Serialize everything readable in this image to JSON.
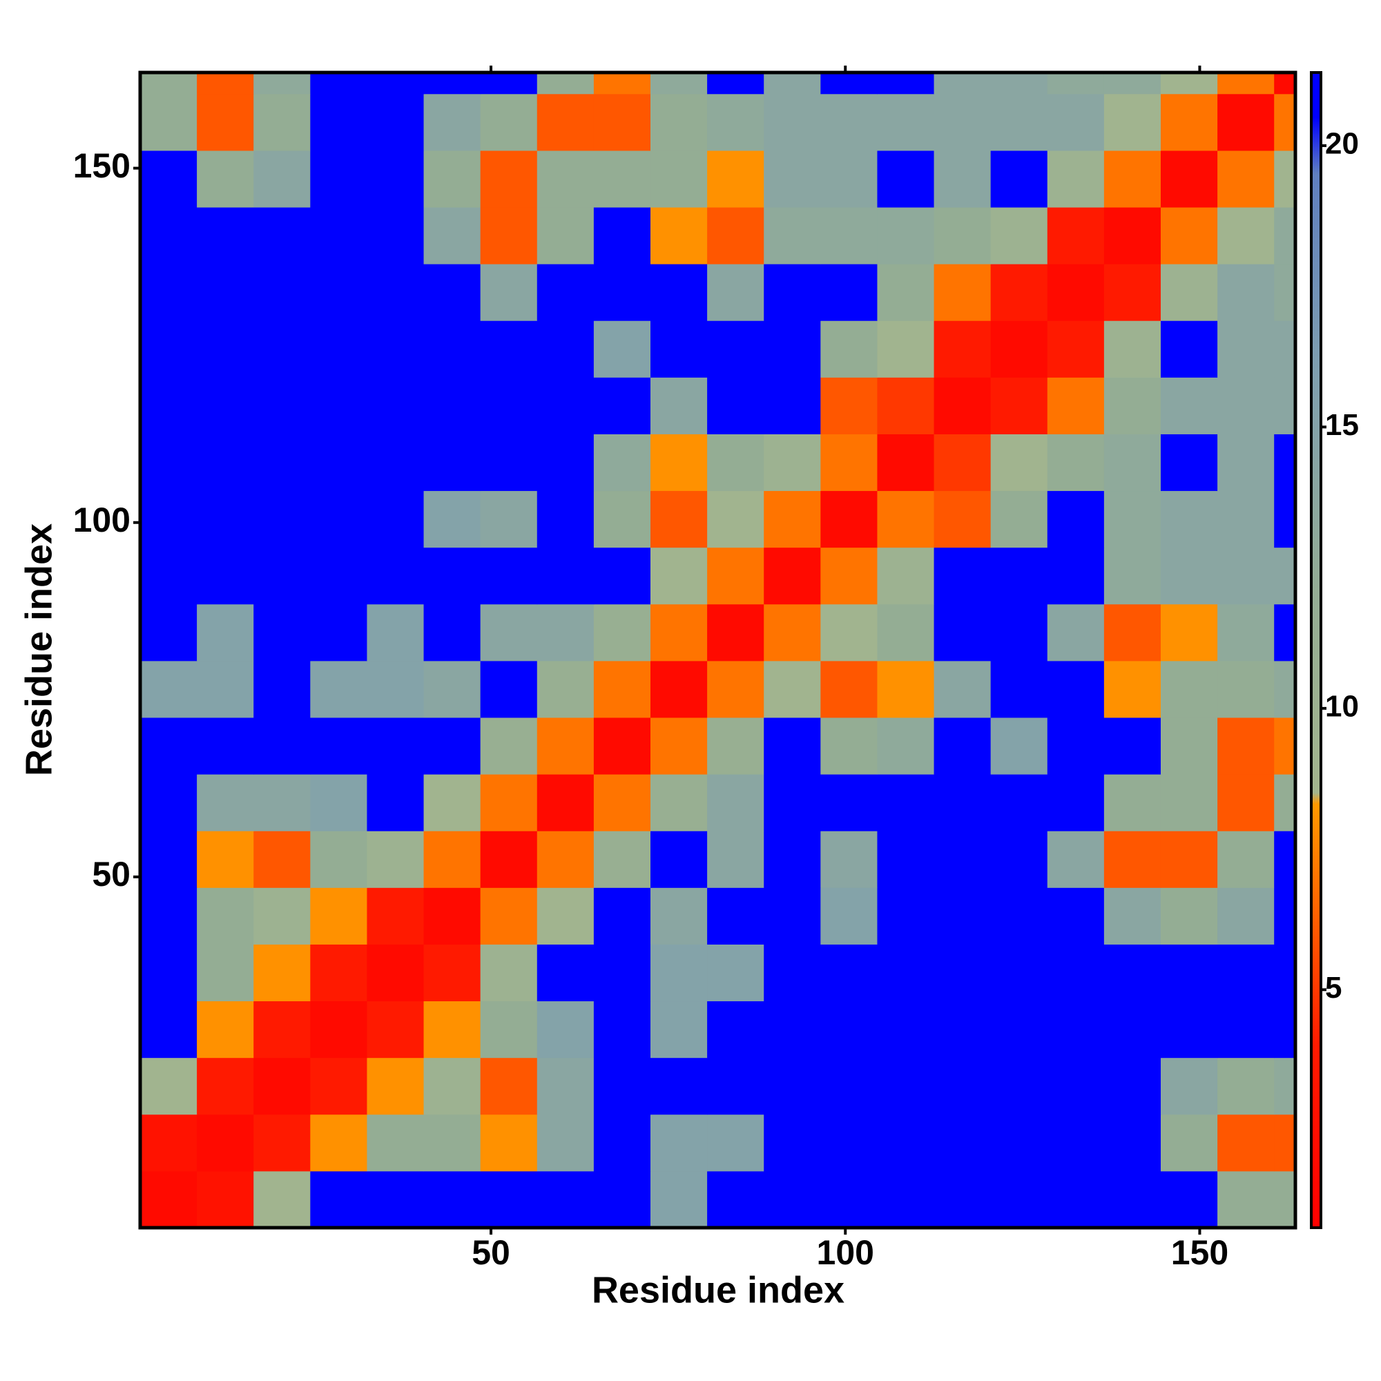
{
  "chart_data": {
    "type": "heatmap",
    "xlabel": "Residue index",
    "ylabel": "Residue index",
    "x": [
      4.5,
      12.5,
      20.5,
      28.5,
      36.5,
      44.5,
      52.5,
      60.5,
      68.5,
      76.5,
      84.5,
      92.5,
      100.5,
      108.5,
      116.5,
      124.5,
      132.5,
      140.5,
      148.5,
      156.5,
      164.5
    ],
    "y": [
      4.5,
      12.5,
      20.5,
      28.5,
      36.5,
      44.5,
      52.5,
      60.5,
      68.5,
      76.5,
      84.5,
      92.5,
      100.5,
      108.5,
      116.5,
      124.5,
      132.5,
      140.5,
      148.5,
      156.5,
      164.5
    ],
    "z": [
      [
        2,
        3,
        9,
        21,
        21,
        21,
        21,
        21,
        21,
        15,
        21,
        21,
        21,
        21,
        21,
        21,
        21,
        21,
        21,
        12,
        12
      ],
      [
        3,
        2,
        4,
        8,
        12,
        12,
        8,
        14,
        21,
        15,
        15,
        21,
        21,
        21,
        21,
        21,
        21,
        21,
        12,
        6,
        6
      ],
      [
        9,
        4,
        2,
        4,
        8,
        10,
        6,
        14,
        21,
        21,
        21,
        21,
        21,
        21,
        21,
        21,
        21,
        21,
        14,
        12,
        13
      ],
      [
        21,
        8,
        4,
        2,
        4,
        8,
        12,
        15,
        21,
        15,
        21,
        21,
        21,
        21,
        21,
        21,
        21,
        21,
        21,
        21,
        21
      ],
      [
        21,
        12,
        8,
        4,
        2,
        4,
        10,
        21,
        21,
        15,
        15,
        21,
        21,
        21,
        21,
        21,
        21,
        21,
        21,
        21,
        21
      ],
      [
        21,
        12,
        10,
        8,
        4,
        2,
        7,
        9,
        21,
        14,
        21,
        21,
        15,
        21,
        21,
        21,
        21,
        14,
        12,
        14,
        21
      ],
      [
        21,
        8,
        6,
        12,
        10,
        7,
        2,
        7,
        11,
        21,
        14,
        21,
        14,
        21,
        21,
        21,
        14,
        6,
        6,
        12,
        21
      ],
      [
        21,
        14,
        14,
        15,
        21,
        9,
        7,
        2,
        7,
        11,
        14,
        21,
        21,
        21,
        21,
        21,
        21,
        12,
        12,
        6,
        12
      ],
      [
        21,
        21,
        21,
        21,
        21,
        21,
        11,
        7,
        2,
        7,
        11,
        21,
        12,
        13,
        21,
        15,
        21,
        21,
        12,
        6,
        7
      ],
      [
        15,
        15,
        21,
        15,
        15,
        14,
        21,
        11,
        7,
        2,
        7,
        9,
        6,
        8,
        14,
        21,
        21,
        8,
        12,
        12,
        13
      ],
      [
        21,
        15,
        21,
        21,
        15,
        21,
        14,
        14,
        11,
        7,
        2,
        7,
        9,
        12,
        21,
        21,
        14,
        6,
        8,
        13,
        21
      ],
      [
        21,
        21,
        21,
        21,
        21,
        21,
        21,
        21,
        21,
        9,
        7,
        2,
        7,
        10,
        21,
        21,
        21,
        13,
        14,
        14,
        14
      ],
      [
        21,
        21,
        21,
        21,
        21,
        15,
        14,
        21,
        12,
        6,
        9,
        7,
        2,
        7,
        6,
        12,
        21,
        13,
        14,
        14,
        21
      ],
      [
        21,
        21,
        21,
        21,
        21,
        21,
        21,
        21,
        13,
        8,
        12,
        10,
        7,
        2,
        5,
        9,
        12,
        13,
        21,
        14,
        21
      ],
      [
        21,
        21,
        21,
        21,
        21,
        21,
        21,
        21,
        21,
        14,
        21,
        21,
        6,
        5,
        2,
        4,
        7,
        12,
        14,
        14,
        14
      ],
      [
        21,
        21,
        21,
        21,
        21,
        21,
        21,
        21,
        15,
        21,
        21,
        21,
        12,
        9,
        4,
        2,
        4,
        10,
        21,
        14,
        14
      ],
      [
        21,
        21,
        21,
        21,
        21,
        21,
        14,
        21,
        21,
        21,
        14,
        21,
        21,
        12,
        7,
        4,
        2,
        4,
        10,
        14,
        13
      ],
      [
        21,
        21,
        21,
        21,
        21,
        14,
        6,
        12,
        21,
        8,
        6,
        13,
        13,
        13,
        12,
        10,
        4,
        2,
        7,
        9,
        13
      ],
      [
        21,
        12,
        14,
        21,
        21,
        12,
        6,
        12,
        12,
        12,
        8,
        14,
        14,
        21,
        14,
        21,
        10,
        7,
        2,
        7,
        9
      ],
      [
        12,
        6,
        12,
        21,
        21,
        14,
        12,
        6,
        6,
        12,
        13,
        14,
        14,
        14,
        14,
        14,
        14,
        9,
        7,
        2,
        7
      ],
      [
        12,
        6,
        13,
        21,
        21,
        21,
        21,
        12,
        7,
        13,
        21,
        14,
        21,
        21,
        14,
        14,
        13,
        13,
        9,
        7,
        2
      ]
    ],
    "xlim": [
      0.5,
      163.5
    ],
    "ylim": [
      0.5,
      163.5
    ],
    "xticks": [
      50,
      100,
      150
    ],
    "yticks": [
      50,
      100,
      150
    ],
    "zlim": [
      0.77,
      21.3
    ],
    "zticks": [
      5,
      10,
      15,
      20
    ],
    "colorscale": [
      {
        "value": 0.77,
        "color": "#ff0000"
      },
      {
        "value": 4,
        "color": "#ff1a00"
      },
      {
        "value": 6.5,
        "color": "#ff6600"
      },
      {
        "value": 8.3,
        "color": "#ff9900"
      },
      {
        "value": 8.5,
        "color": "#a3b58e"
      },
      {
        "value": 12,
        "color": "#94ad94"
      },
      {
        "value": 16,
        "color": "#7f9fb0"
      },
      {
        "value": 19.5,
        "color": "#5f7fc0"
      },
      {
        "value": 20.5,
        "color": "#0000ff"
      },
      {
        "value": 21.3,
        "color": "#0000ff"
      }
    ]
  }
}
